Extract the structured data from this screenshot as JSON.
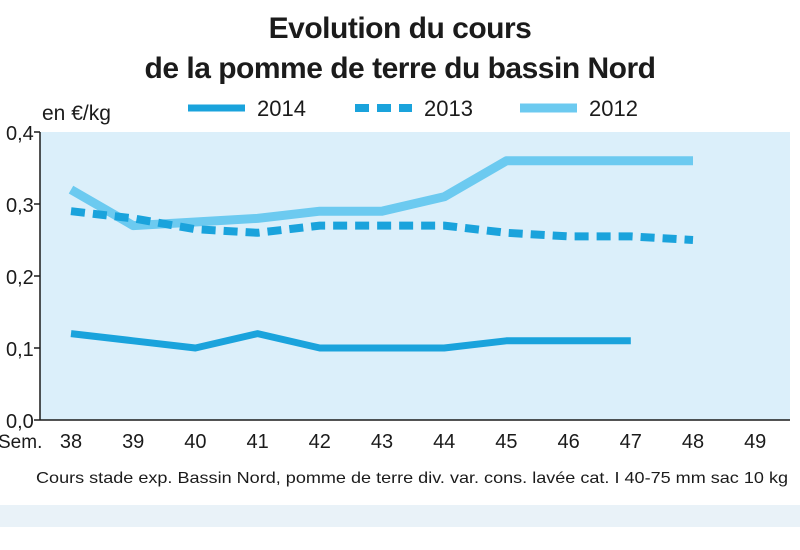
{
  "chart_data": {
    "type": "line",
    "title_line1": "Evolution du cours",
    "title_line2": "de la pomme de terre du bassin Nord",
    "ylabel": "en €/kg",
    "xlabel": "Sem.",
    "note": "Cours stade exp. Bassin Nord, pomme de terre div. var. cons. lavée cat. I 40-75 mm sac 10 kg",
    "x": [
      38,
      39,
      40,
      41,
      42,
      43,
      44,
      45,
      46,
      47,
      48,
      49
    ],
    "x_tick_labels": [
      "38",
      "39",
      "40",
      "41",
      "42",
      "43",
      "44",
      "45",
      "46",
      "47",
      "48",
      "49"
    ],
    "ylim": [
      0,
      0.4
    ],
    "y_ticks": [
      0,
      0.1,
      0.2,
      0.3,
      0.4
    ],
    "y_tick_labels": [
      "0,0",
      "0,1",
      "0,2",
      "0,3",
      "0,4"
    ],
    "grid": false,
    "legend_position": "top",
    "series": [
      {
        "name": "2014",
        "style": "solid",
        "color": "#1aa3dc",
        "x": [
          38,
          39,
          40,
          41,
          42,
          43,
          44,
          45,
          46,
          47
        ],
        "values": [
          0.12,
          0.11,
          0.1,
          0.12,
          0.1,
          0.1,
          0.1,
          0.11,
          0.11,
          0.11
        ]
      },
      {
        "name": "2013",
        "style": "dashed",
        "color": "#1aa3dc",
        "x": [
          38,
          39,
          40,
          41,
          42,
          43,
          44,
          45,
          46,
          47,
          48
        ],
        "values": [
          0.29,
          0.28,
          0.265,
          0.26,
          0.27,
          0.27,
          0.27,
          0.26,
          0.255,
          0.255,
          0.25
        ]
      },
      {
        "name": "2012",
        "style": "solid-light",
        "color": "#6ccaf0",
        "x": [
          38,
          39,
          40,
          41,
          42,
          43,
          44,
          45,
          46,
          47,
          48
        ],
        "values": [
          0.32,
          0.27,
          0.275,
          0.28,
          0.29,
          0.29,
          0.31,
          0.36,
          0.36,
          0.36,
          0.36
        ]
      }
    ]
  },
  "colors": {
    "plot_background": "#dbeffa",
    "axis": "#1b1b1b",
    "text": "#1b1b1b"
  }
}
